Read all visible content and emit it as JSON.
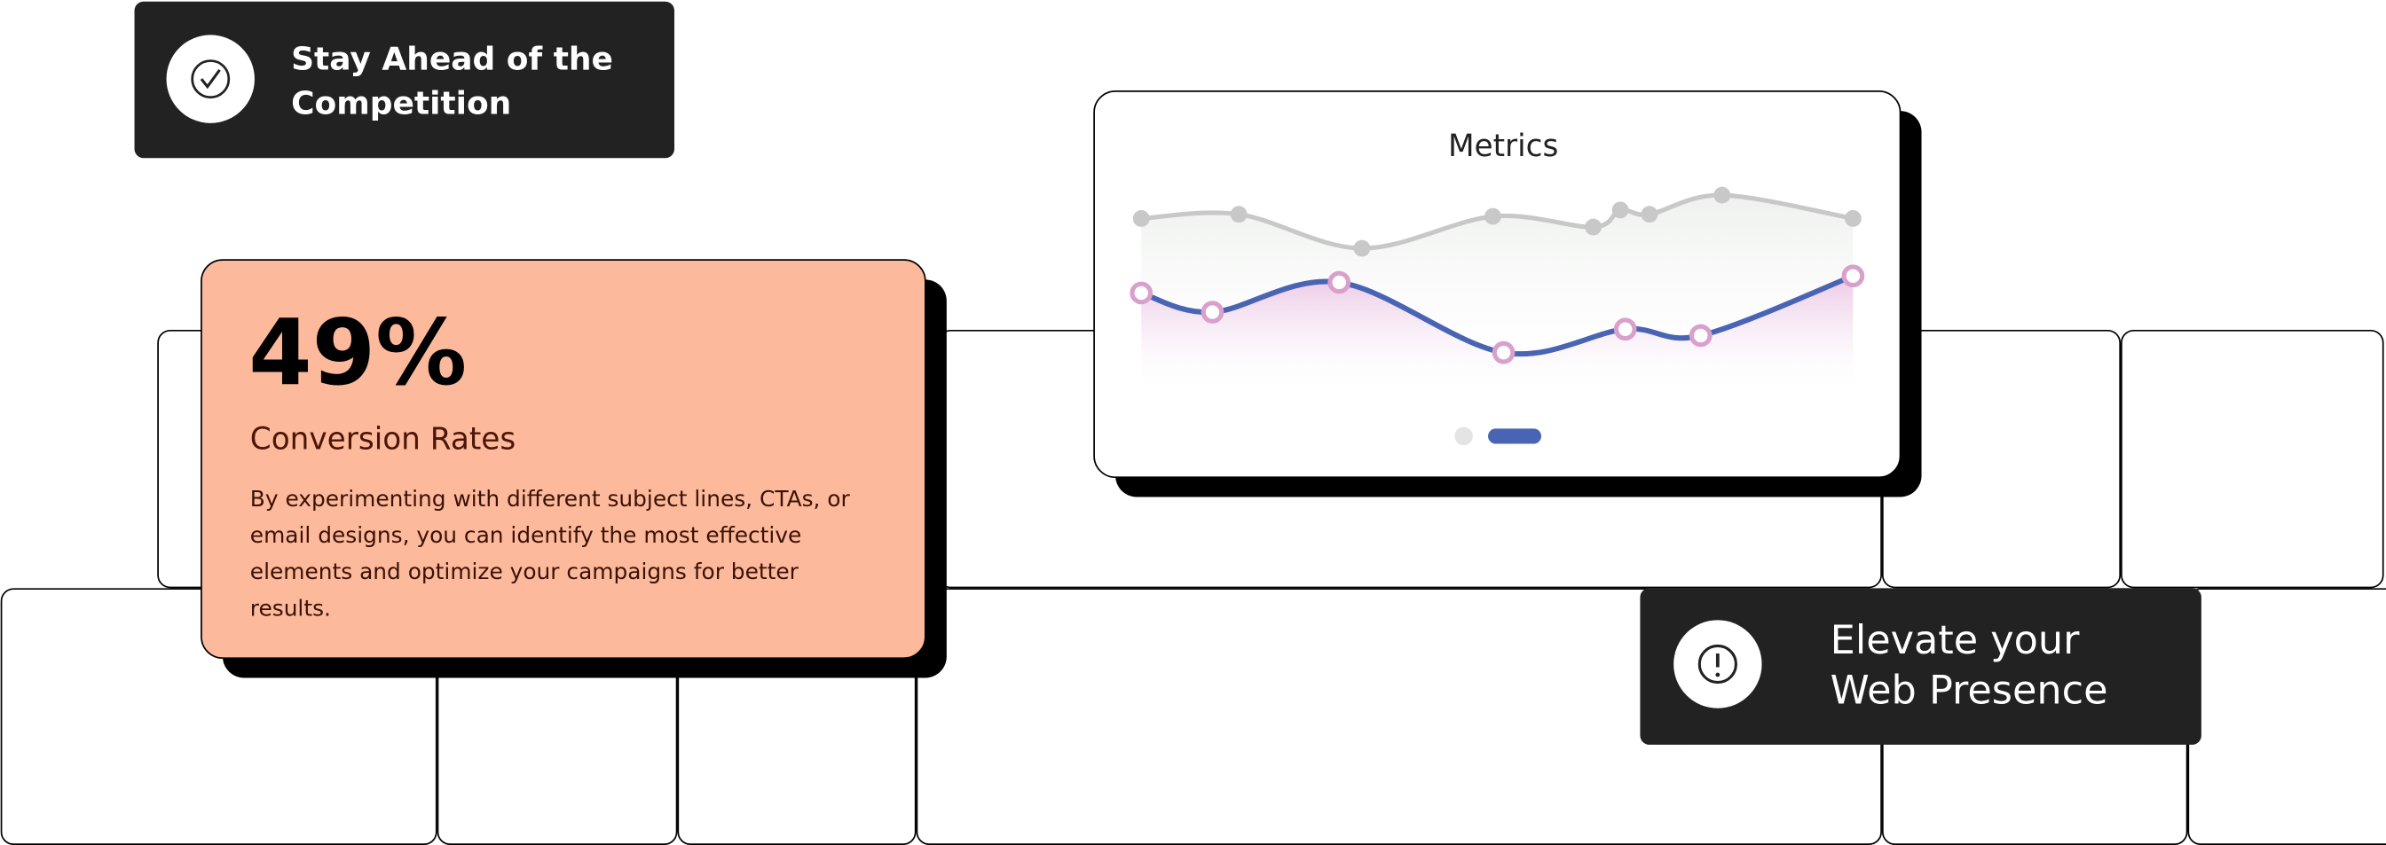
{
  "badges": [
    {
      "text_lines": [
        "Stay Ahead of the",
        "Competition"
      ]
    },
    {
      "text_lines": [
        "Elevate your",
        "Web Presence"
      ]
    }
  ],
  "stat_card": {
    "value": "49%",
    "title": "Conversion Rates",
    "description_lines": [
      "By experimenting with different subject lines, CTAs, or",
      "email designs, you can identify the most effective",
      "elements and optimize your campaigns for better",
      "results."
    ]
  },
  "chart_data": {
    "type": "line",
    "title": "Metrics",
    "xlim": [
      0,
      100
    ],
    "ylim": [
      0,
      100
    ],
    "series": [
      {
        "color": "#c8c8c8",
        "marker_color": "#c8c8c8",
        "x": [
          0,
          13.7,
          31,
          49.4,
          63.5,
          67.3,
          71.4,
          81.6,
          100
        ],
        "values": [
          83,
          85,
          69,
          84,
          79,
          87,
          85,
          94,
          83
        ]
      },
      {
        "color": "#4a64b4",
        "marker_color": "#d9a0cc",
        "x": [
          0,
          10,
          27.8,
          50.9,
          68,
          78.6,
          100
        ],
        "values": [
          48,
          39,
          53,
          20,
          31,
          28,
          56
        ]
      }
    ]
  }
}
